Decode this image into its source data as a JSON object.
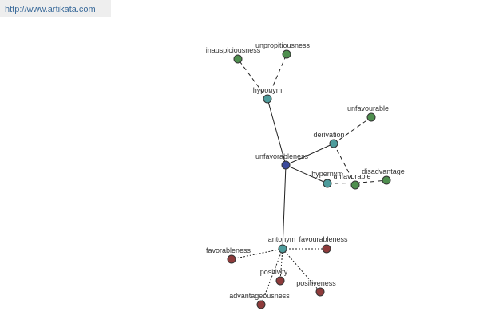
{
  "header": {
    "url": "http://www.artikata.com"
  },
  "nodes": [
    {
      "label": "unfavorableness"
    },
    {
      "label": "hyponym"
    },
    {
      "label": "inauspiciousness"
    },
    {
      "label": "unpropitiousness"
    },
    {
      "label": "derivation"
    },
    {
      "label": "unfavourable"
    },
    {
      "label": "unfavorable"
    },
    {
      "label": "hypernym"
    },
    {
      "label": "disadvantage"
    },
    {
      "label": "antonym"
    },
    {
      "label": "favorableness"
    },
    {
      "label": "favourableness"
    },
    {
      "label": "positivity"
    },
    {
      "label": "positiveness"
    },
    {
      "label": "advantageousness"
    }
  ]
}
